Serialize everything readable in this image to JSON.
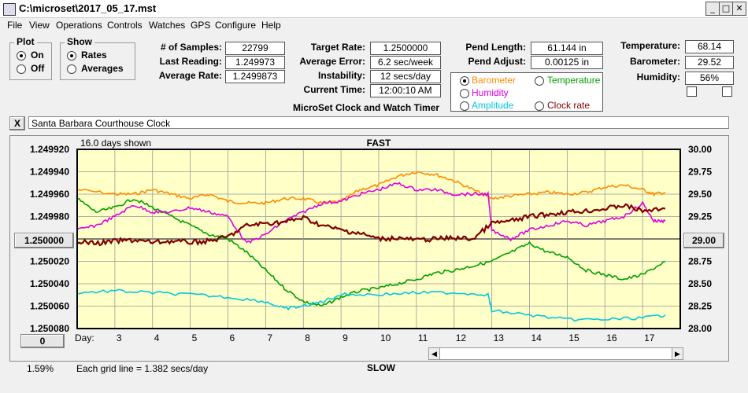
{
  "window": {
    "title": "C:\\microset\\2017_05_17.mst",
    "buttons": {
      "minimize": "_",
      "maximize": "□",
      "close": "✕"
    }
  },
  "menu": [
    "File",
    "View",
    "Operations",
    "Controls",
    "Watches",
    "GPS",
    "Configure",
    "Help"
  ],
  "plot_group": {
    "title": "Plot",
    "on": "On",
    "off": "Off",
    "selected": "On"
  },
  "show_group": {
    "title": "Show",
    "rates": "Rates",
    "averages": "Averages",
    "selected": "Rates"
  },
  "stats": {
    "samples_label": "# of Samples:",
    "samples": "22799",
    "last_label": "Last Reading:",
    "last": "1.249973",
    "avg_rate_label": "Average Rate:",
    "avg_rate": "1.2499873",
    "target_label": "Target Rate:",
    "target": "1.2500000",
    "avg_err_label": "Average Error:",
    "avg_err": "6.2 sec/week",
    "instab_label": "Instability:",
    "instab": "12 secs/day",
    "time_label": "Current Time:",
    "time": "12:00:10 AM",
    "pend_len_label": "Pend Length:",
    "pend_len": "61.144 in",
    "pend_adj_label": "Pend Adjust:",
    "pend_adj": "0.00125 in",
    "temp_label": "Temperature:",
    "temp": "68.14",
    "baro_label": "Barometer:",
    "baro": "29.52",
    "hum_label": "Humidity:",
    "hum": "56%"
  },
  "subtitle": "MicroSet Clock and Watch Timer",
  "aux_options": {
    "barometer": "Barometer",
    "temperature": "Temperature",
    "humidity": "Humidity",
    "amplitude": "Amplitude",
    "clock_rate": "Clock rate",
    "selected": "Barometer",
    "colors": {
      "barometer": "#ff8c00",
      "temperature": "#00a000",
      "humidity": "#e000e0",
      "amplitude": "#00c8e0",
      "clock_rate": "#800000"
    }
  },
  "clock_name": "Santa Barbara Courthouse Clock",
  "clear_button": "X",
  "plot": {
    "days_shown": "16.0 days shown",
    "fast": "FAST",
    "slow": "SLOW",
    "grid_note": "Each grid line = 1.382 secs/day",
    "percent": "1.59%",
    "day_label": "Day:",
    "left_btn": "1.250000",
    "right_btn": "29.00",
    "bottom_btn": "0"
  },
  "chart_data": {
    "type": "line",
    "x_label": "Day:",
    "x_ticks": [
      3,
      4,
      5,
      6,
      7,
      8,
      9,
      10,
      11,
      12,
      13,
      14,
      15,
      16,
      17
    ],
    "xlim": [
      2.0,
      18.0
    ],
    "y_left_ticks": [
      "1.249920",
      "1.249940",
      "1.249960",
      "1.249980",
      "1.250000",
      "1.250020",
      "1.250040",
      "1.250060",
      "1.250080"
    ],
    "y_left_lim": [
      1.24992,
      1.25008
    ],
    "y_right_ticks": [
      "30.00",
      "29.75",
      "29.50",
      "29.25",
      "29.00",
      "28.75",
      "28.50",
      "28.25",
      "28.00"
    ],
    "y_right_lim": [
      28.0,
      30.0
    ],
    "grid": true,
    "series": [
      {
        "name": "Barometer",
        "color": "#ff8c00",
        "points": [
          [
            2,
            29.55
          ],
          [
            3,
            29.5
          ],
          [
            3.5,
            29.5
          ],
          [
            4,
            29.55
          ],
          [
            4.5,
            29.5
          ],
          [
            5,
            29.45
          ],
          [
            5.5,
            29.5
          ],
          [
            6,
            29.42
          ],
          [
            6.5,
            29.4
          ],
          [
            7,
            29.4
          ],
          [
            7.5,
            29.45
          ],
          [
            8,
            29.45
          ],
          [
            8.5,
            29.4
          ],
          [
            9,
            29.42
          ],
          [
            9.5,
            29.55
          ],
          [
            10,
            29.6
          ],
          [
            10.5,
            29.7
          ],
          [
            11,
            29.75
          ],
          [
            11.5,
            29.72
          ],
          [
            12,
            29.65
          ],
          [
            12.5,
            29.55
          ],
          [
            13,
            29.45
          ],
          [
            13.5,
            29.48
          ],
          [
            14,
            29.5
          ],
          [
            14.5,
            29.52
          ],
          [
            15,
            29.5
          ],
          [
            15.5,
            29.52
          ],
          [
            16,
            29.58
          ],
          [
            16.5,
            29.6
          ],
          [
            17,
            29.55
          ],
          [
            17.3,
            29.5
          ],
          [
            17.6,
            29.52
          ]
        ]
      },
      {
        "name": "Temperature",
        "color": "#00a000",
        "points": [
          [
            2,
            29.45
          ],
          [
            2.5,
            29.3
          ],
          [
            3,
            29.35
          ],
          [
            3.5,
            29.45
          ],
          [
            4,
            29.35
          ],
          [
            4.5,
            29.25
          ],
          [
            5,
            29.15
          ],
          [
            5.5,
            29.05
          ],
          [
            6,
            29.0
          ],
          [
            6.5,
            28.85
          ],
          [
            7,
            28.65
          ],
          [
            7.5,
            28.45
          ],
          [
            8,
            28.3
          ],
          [
            8.5,
            28.25
          ],
          [
            9,
            28.35
          ],
          [
            9.5,
            28.42
          ],
          [
            10,
            28.45
          ],
          [
            10.5,
            28.5
          ],
          [
            11,
            28.55
          ],
          [
            11.5,
            28.62
          ],
          [
            12,
            28.65
          ],
          [
            12.5,
            28.7
          ],
          [
            13,
            28.75
          ],
          [
            13.5,
            28.85
          ],
          [
            14,
            28.95
          ],
          [
            14.5,
            28.85
          ],
          [
            15,
            28.8
          ],
          [
            15.5,
            28.65
          ],
          [
            16,
            28.6
          ],
          [
            16.5,
            28.55
          ],
          [
            17,
            28.6
          ],
          [
            17.6,
            28.75
          ]
        ]
      },
      {
        "name": "Humidity",
        "color": "#e000e0",
        "points": [
          [
            2,
            29.1
          ],
          [
            2.5,
            29.15
          ],
          [
            3,
            29.25
          ],
          [
            3.5,
            29.38
          ],
          [
            4,
            29.3
          ],
          [
            4.5,
            29.3
          ],
          [
            5,
            29.35
          ],
          [
            5.5,
            29.3
          ],
          [
            6,
            29.25
          ],
          [
            6.5,
            28.95
          ],
          [
            7,
            29.05
          ],
          [
            7.5,
            29.2
          ],
          [
            8,
            29.3
          ],
          [
            8.5,
            29.4
          ],
          [
            9,
            29.42
          ],
          [
            9.5,
            29.5
          ],
          [
            10,
            29.55
          ],
          [
            10.5,
            29.62
          ],
          [
            11,
            29.55
          ],
          [
            11.5,
            29.55
          ],
          [
            12,
            29.5
          ],
          [
            12.5,
            29.5
          ],
          [
            12.9,
            29.5
          ],
          [
            13,
            29.1
          ],
          [
            13.5,
            29.0
          ],
          [
            14,
            29.1
          ],
          [
            14.5,
            29.15
          ],
          [
            15,
            29.2
          ],
          [
            15.5,
            29.15
          ],
          [
            16,
            29.2
          ],
          [
            16.5,
            29.25
          ],
          [
            17,
            29.4
          ],
          [
            17.3,
            29.2
          ],
          [
            17.6,
            29.2
          ]
        ]
      },
      {
        "name": "Amplitude",
        "color": "#00c8e0",
        "points": [
          [
            2,
            28.4
          ],
          [
            3,
            28.42
          ],
          [
            4,
            28.4
          ],
          [
            5,
            28.38
          ],
          [
            6,
            28.35
          ],
          [
            7,
            28.3
          ],
          [
            7.5,
            28.22
          ],
          [
            8,
            28.25
          ],
          [
            8.5,
            28.3
          ],
          [
            9,
            28.38
          ],
          [
            10,
            28.38
          ],
          [
            11,
            28.4
          ],
          [
            12,
            28.4
          ],
          [
            12.9,
            28.38
          ],
          [
            13,
            28.2
          ],
          [
            14,
            28.15
          ],
          [
            15,
            28.1
          ],
          [
            16,
            28.1
          ],
          [
            17,
            28.12
          ],
          [
            17.6,
            28.15
          ]
        ]
      },
      {
        "name": "Clock rate",
        "color": "#800000",
        "points": [
          [
            2,
            1.250002
          ],
          [
            2.5,
            1.250004
          ],
          [
            3,
            1.250002
          ],
          [
            3.5,
            1.250001
          ],
          [
            4,
            1.250003
          ],
          [
            4.5,
            1.250002
          ],
          [
            5,
            1.250003
          ],
          [
            5.5,
            1.250002
          ],
          [
            6,
            1.249998
          ],
          [
            6.5,
            1.249988
          ],
          [
            7,
            1.249986
          ],
          [
            7.5,
            1.249985
          ],
          [
            8,
            1.249981
          ],
          [
            8.5,
            1.249988
          ],
          [
            9,
            1.249992
          ],
          [
            9.5,
            1.249995
          ],
          [
            10,
            1.25
          ],
          [
            10.5,
            1.249999
          ],
          [
            11,
            1.250001
          ],
          [
            11.5,
            1.25
          ],
          [
            12,
            1.249999
          ],
          [
            12.5,
            1.25
          ],
          [
            13,
            1.249986
          ],
          [
            13.5,
            1.249984
          ],
          [
            14,
            1.24998
          ],
          [
            14.5,
            1.249978
          ],
          [
            15,
            1.249976
          ],
          [
            15.5,
            1.249975
          ],
          [
            16,
            1.249973
          ],
          [
            16.5,
            1.24997
          ],
          [
            17,
            1.249975
          ],
          [
            17.6,
            1.249973
          ]
        ]
      }
    ]
  }
}
